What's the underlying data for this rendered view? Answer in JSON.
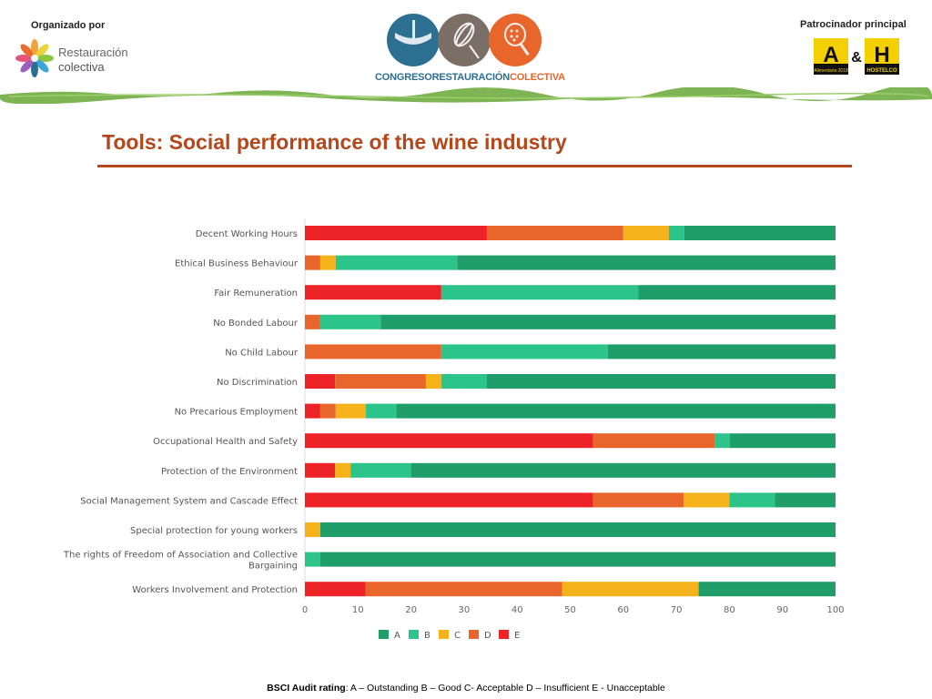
{
  "header": {
    "organizer_label": "Organizado por",
    "organizer_name_line1": "Restauración",
    "organizer_name_line2": "colectiva",
    "congress_name_part1": "CONGRESORESTAURACIÓN",
    "congress_name_part2": "COLECTIVA",
    "sponsor_label": "Patrocinador principal",
    "sponsor_logo_letter_a": "A",
    "sponsor_logo_amp": "&",
    "sponsor_logo_letter_h": "H",
    "sponsor_logo_sub_a": "Alimentaria 2018",
    "sponsor_logo_sub_h": "HOSTELCO"
  },
  "slide": {
    "title": "Tools: Social performance of the wine industry"
  },
  "footer": {
    "label": "BSCI Audit rating",
    "text": ":   A – Outstanding    B – Good    C- Acceptable    D – Insufficient    E - Unacceptable"
  },
  "colors": {
    "A": "#1f9e6a",
    "B": "#2dc48a",
    "C": "#f5b21b",
    "D": "#e8652c",
    "E": "#ec2427",
    "title": "#b4471c",
    "brush": "#7fb454"
  },
  "chart_data": {
    "type": "bar",
    "orientation": "horizontal",
    "stacked": true,
    "categories": [
      "Decent Working Hours",
      "Ethical Business Behaviour",
      "Fair Remuneration",
      "No Bonded Labour",
      "No Child Labour",
      "No Discrimination",
      "No Precarious Employment",
      "Occupational Health and Safety",
      "Protection of the Environment",
      "Social Management System and Cascade Effect",
      "Special protection for young workers",
      "The rights of Freedom of Association and Collective Bargaining",
      "Workers Involvement and Protection"
    ],
    "series": [
      {
        "name": "E",
        "values": [
          34.3,
          0,
          25.7,
          0,
          0,
          5.7,
          2.9,
          54.3,
          5.7,
          54.3,
          0,
          0,
          11.4
        ]
      },
      {
        "name": "D",
        "values": [
          25.7,
          2.9,
          0,
          2.9,
          25.7,
          17.1,
          2.9,
          22.9,
          0,
          17.1,
          0,
          0,
          37.1
        ]
      },
      {
        "name": "C",
        "values": [
          8.6,
          2.9,
          0,
          0,
          0,
          2.9,
          5.7,
          0,
          2.9,
          8.6,
          2.9,
          0,
          25.7
        ]
      },
      {
        "name": "B",
        "values": [
          2.9,
          22.9,
          37.1,
          11.4,
          31.4,
          8.6,
          5.7,
          2.9,
          11.4,
          8.6,
          0,
          2.9,
          0
        ]
      },
      {
        "name": "A",
        "values": [
          28.5,
          71.3,
          37.2,
          85.7,
          42.9,
          65.7,
          82.8,
          19.9,
          80.0,
          11.4,
          97.1,
          97.1,
          25.8
        ]
      }
    ],
    "legend_order": [
      "A",
      "B",
      "C",
      "D",
      "E"
    ],
    "legend_position": "bottom",
    "x_ticks": [
      "0",
      "10",
      "20",
      "30",
      "40",
      "50",
      "60",
      "70",
      "80",
      "90",
      "100"
    ],
    "xlim": [
      0,
      100
    ],
    "xlabel": "",
    "ylabel": "",
    "grid": false
  }
}
